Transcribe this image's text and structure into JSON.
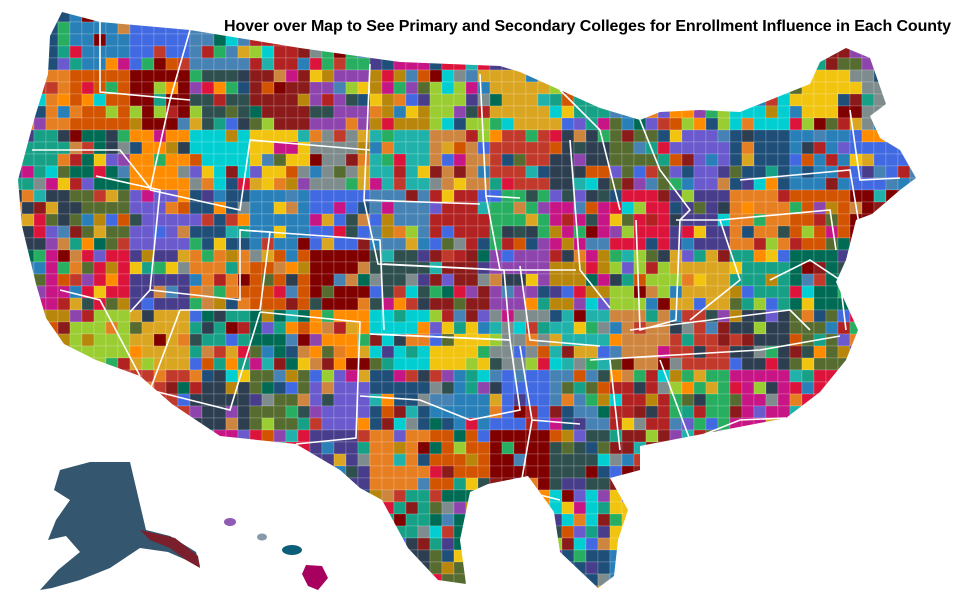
{
  "title": "Hover over Map to See Primary and Secondary Colleges for Enrollment Influence in Each County",
  "map": {
    "type": "county-choropleth",
    "region": "United States",
    "interaction": "hover",
    "insets": [
      "Alaska",
      "Hawaii"
    ],
    "background": "#ffffff",
    "state_border_color": "#ffffff",
    "palette": [
      "#1f4e79",
      "#8b1a1a",
      "#c0392b",
      "#e67e22",
      "#f1c40f",
      "#27ae60",
      "#16a085",
      "#2980b9",
      "#8e44ad",
      "#2c3e50",
      "#d35400",
      "#7f8c8d",
      "#c71585",
      "#006b54",
      "#4169e1",
      "#b8860b",
      "#556b2f",
      "#800000",
      "#20b2aa",
      "#dc143c",
      "#ff8c00",
      "#4682b4",
      "#9acd32",
      "#6a5acd",
      "#2f4f4f",
      "#cd853f",
      "#483d8b",
      "#00ced1",
      "#b22222",
      "#daa520"
    ],
    "alaska_color": "#34566f",
    "hawaii_color": "#a8005f"
  }
}
